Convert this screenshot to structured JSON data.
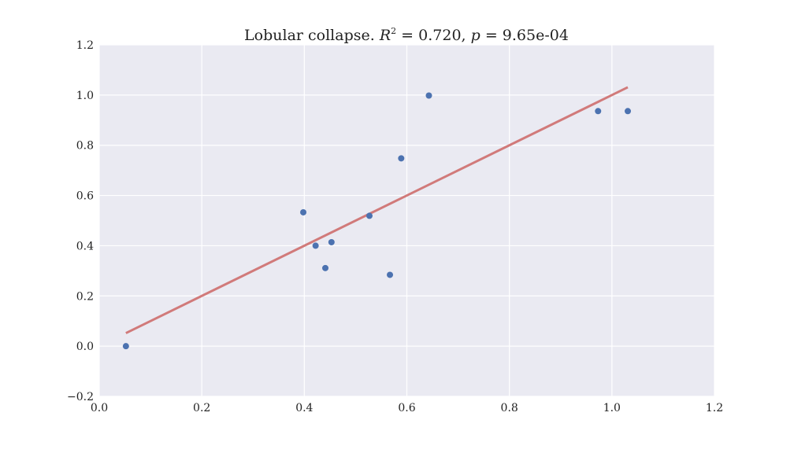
{
  "chart_data": {
    "type": "scatter",
    "title": "Lobular collapse. R² = 0.720, p = 9.65e-04",
    "title_parts": {
      "name": "Lobular collapse. ",
      "r_symbol": "R",
      "r_exponent": "2",
      "r_value": " = 0.720, ",
      "p_symbol": "p",
      "p_value": " = 9.65e-04"
    },
    "xlabel": "",
    "ylabel": "",
    "xlim": [
      0.0,
      1.2
    ],
    "ylim": [
      -0.2,
      1.2
    ],
    "x_ticks": [
      0.0,
      0.2,
      0.4,
      0.6,
      0.8,
      1.0,
      1.2
    ],
    "x_tick_labels": [
      "0.0",
      "0.2",
      "0.4",
      "0.6",
      "0.8",
      "1.0",
      "1.2"
    ],
    "y_ticks": [
      -0.2,
      0.0,
      0.2,
      0.4,
      0.6,
      0.8,
      1.0,
      1.2
    ],
    "y_tick_labels": [
      "−0.2",
      "0.0",
      "0.2",
      "0.4",
      "0.6",
      "0.8",
      "1.0",
      "1.2"
    ],
    "grid": true,
    "points": [
      {
        "x": 0.052,
        "y": 0.0
      },
      {
        "x": 0.398,
        "y": 0.533
      },
      {
        "x": 0.422,
        "y": 0.4
      },
      {
        "x": 0.441,
        "y": 0.311
      },
      {
        "x": 0.453,
        "y": 0.414
      },
      {
        "x": 0.527,
        "y": 0.519
      },
      {
        "x": 0.567,
        "y": 0.284
      },
      {
        "x": 0.589,
        "y": 0.748
      },
      {
        "x": 0.643,
        "y": 0.998
      },
      {
        "x": 0.973,
        "y": 0.936
      },
      {
        "x": 1.031,
        "y": 0.936
      }
    ],
    "fit_line": {
      "x": [
        0.052,
        1.031
      ],
      "y": [
        0.052,
        1.031
      ]
    },
    "colors": {
      "background": "#eaeaf2",
      "grid": "#ffffff",
      "points": "#4c72b0",
      "fit_line": "#d17a7a"
    }
  }
}
